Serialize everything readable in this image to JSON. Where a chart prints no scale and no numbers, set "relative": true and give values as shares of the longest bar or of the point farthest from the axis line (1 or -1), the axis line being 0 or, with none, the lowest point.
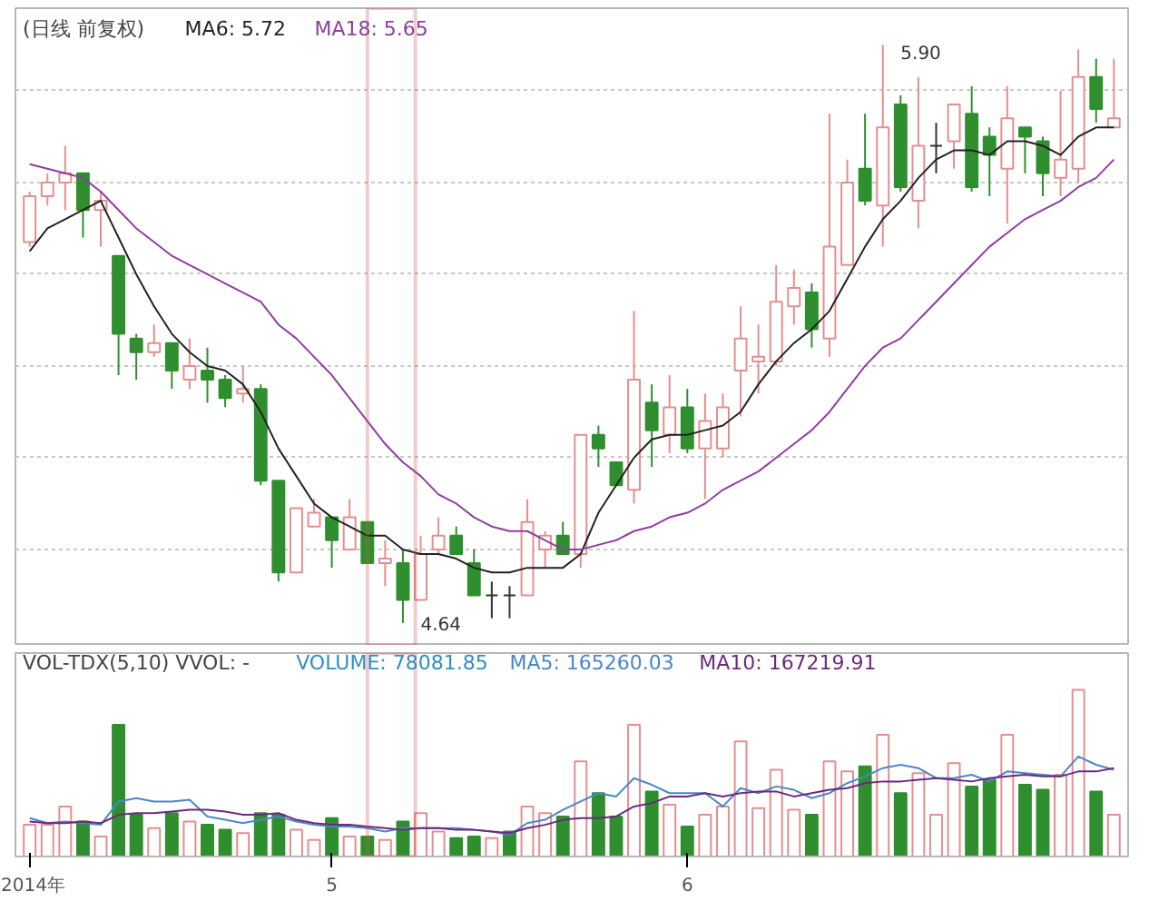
{
  "chart_data": [
    {
      "type": "candlestick",
      "title": "(日线 前复权)",
      "legend": "top left",
      "grid": "y",
      "tick_labels": false,
      "ylim": [
        4.59,
        5.98
      ],
      "yticks": [
        {
          "value": 4.8,
          "label": null
        },
        {
          "value": 5.0,
          "label": null
        },
        {
          "value": 5.2,
          "label": null
        },
        {
          "value": 5.4,
          "label": null
        },
        {
          "value": 5.6,
          "label": null
        },
        {
          "value": 5.8,
          "label": null
        }
      ],
      "categories": [
        null,
        null,
        null,
        null,
        null,
        null,
        null,
        null,
        null,
        null,
        null,
        null,
        null,
        null,
        null,
        null,
        null,
        null,
        null,
        null,
        null,
        null,
        null,
        null,
        null,
        null,
        null,
        null,
        null,
        null,
        null,
        null,
        null,
        null,
        null,
        null,
        null,
        null,
        null,
        null,
        null,
        null,
        null,
        null,
        null,
        null,
        null,
        null,
        null,
        null,
        null,
        null,
        null,
        null,
        null,
        null,
        null,
        null,
        null,
        null,
        null,
        null
      ],
      "ohlc": [
        [
          5.47,
          5.58,
          5.46,
          5.57
        ],
        [
          5.57,
          5.62,
          5.55,
          5.6
        ],
        [
          5.6,
          5.68,
          5.54,
          5.62
        ],
        [
          5.62,
          5.62,
          5.48,
          5.54
        ],
        [
          5.54,
          5.58,
          5.46,
          5.56
        ],
        [
          5.44,
          5.44,
          5.18,
          5.27
        ],
        [
          5.26,
          5.27,
          5.17,
          5.23
        ],
        [
          5.23,
          5.29,
          5.22,
          5.25
        ],
        [
          5.25,
          5.25,
          5.15,
          5.19
        ],
        [
          5.17,
          5.26,
          5.15,
          5.2
        ],
        [
          5.19,
          5.24,
          5.12,
          5.17
        ],
        [
          5.17,
          5.18,
          5.11,
          5.13
        ],
        [
          5.14,
          5.2,
          5.12,
          5.15
        ],
        [
          5.15,
          5.16,
          4.94,
          4.95
        ],
        [
          4.95,
          4.95,
          4.73,
          4.75
        ],
        [
          4.75,
          4.89,
          4.75,
          4.89
        ],
        [
          4.85,
          4.91,
          4.85,
          4.88
        ],
        [
          4.87,
          4.87,
          4.76,
          4.82
        ],
        [
          4.8,
          4.91,
          4.8,
          4.87
        ],
        [
          4.86,
          4.86,
          4.77,
          4.77
        ],
        [
          4.77,
          4.82,
          4.72,
          4.78
        ],
        [
          4.77,
          4.8,
          4.64,
          4.69
        ],
        [
          4.69,
          4.83,
          4.69,
          4.79
        ],
        [
          4.8,
          4.87,
          4.79,
          4.83
        ],
        [
          4.83,
          4.85,
          4.79,
          4.79
        ],
        [
          4.77,
          4.8,
          4.7,
          4.7
        ],
        [
          4.7,
          4.73,
          4.65,
          4.7
        ],
        [
          4.7,
          4.72,
          4.65,
          4.7
        ],
        [
          4.7,
          4.91,
          4.7,
          4.86
        ],
        [
          4.8,
          4.84,
          4.76,
          4.83
        ],
        [
          4.83,
          4.86,
          4.79,
          4.79
        ],
        [
          4.79,
          5.05,
          4.76,
          5.05
        ],
        [
          5.05,
          5.07,
          4.98,
          5.02
        ],
        [
          4.99,
          4.99,
          4.94,
          4.94
        ],
        [
          4.93,
          5.32,
          4.9,
          5.17
        ],
        [
          5.12,
          5.16,
          4.98,
          5.06
        ],
        [
          5.05,
          5.18,
          5.01,
          5.11
        ],
        [
          5.11,
          5.15,
          5.01,
          5.02
        ],
        [
          5.02,
          5.14,
          4.91,
          5.08
        ],
        [
          5.02,
          5.14,
          5.0,
          5.11
        ],
        [
          5.19,
          5.33,
          5.09,
          5.26
        ],
        [
          5.21,
          5.29,
          5.14,
          5.22
        ],
        [
          5.21,
          5.42,
          5.2,
          5.34
        ],
        [
          5.33,
          5.41,
          5.29,
          5.37
        ],
        [
          5.36,
          5.38,
          5.24,
          5.28
        ],
        [
          5.26,
          5.75,
          5.22,
          5.46
        ],
        [
          5.42,
          5.65,
          5.42,
          5.6
        ],
        [
          5.63,
          5.75,
          5.55,
          5.56
        ],
        [
          5.55,
          5.9,
          5.46,
          5.72
        ],
        [
          5.77,
          5.79,
          5.58,
          5.59
        ],
        [
          5.56,
          5.83,
          5.5,
          5.68
        ],
        [
          5.68,
          5.73,
          5.62,
          5.68
        ],
        [
          5.69,
          5.77,
          5.63,
          5.77
        ],
        [
          5.75,
          5.81,
          5.58,
          5.59
        ],
        [
          5.7,
          5.72,
          5.57,
          5.66
        ],
        [
          5.63,
          5.81,
          5.51,
          5.74
        ],
        [
          5.72,
          5.72,
          5.62,
          5.7
        ],
        [
          5.69,
          5.7,
          5.57,
          5.62
        ],
        [
          5.61,
          5.8,
          5.57,
          5.65
        ],
        [
          5.63,
          5.89,
          5.6,
          5.83
        ],
        [
          5.83,
          5.87,
          5.73,
          5.76
        ],
        [
          5.72,
          5.87,
          5.72,
          5.74
        ]
      ],
      "colors": [
        "#e58e8e",
        "#e58e8e",
        "#e58e8e",
        "#2f8f2f",
        "#e58e8e",
        "#2f8f2f",
        "#2f8f2f",
        "#e58e8e",
        "#2f8f2f",
        "#e58e8e",
        "#2f8f2f",
        "#2f8f2f",
        "#e58e8e",
        "#2f8f2f",
        "#2f8f2f",
        "#e58e8e",
        "#e58e8e",
        "#2f8f2f",
        "#e58e8e",
        "#2f8f2f",
        "#e58e8e",
        "#2f8f2f",
        "#e58e8e",
        "#e58e8e",
        "#2f8f2f",
        "#2f8f2f",
        "#333333",
        "#333333",
        "#e58e8e",
        "#e58e8e",
        "#2f8f2f",
        "#e58e8e",
        "#2f8f2f",
        "#2f8f2f",
        "#e58e8e",
        "#2f8f2f",
        "#e58e8e",
        "#2f8f2f",
        "#e58e8e",
        "#e58e8e",
        "#e58e8e",
        "#e58e8e",
        "#e58e8e",
        "#e58e8e",
        "#2f8f2f",
        "#e58e8e",
        "#e58e8e",
        "#2f8f2f",
        "#e58e8e",
        "#2f8f2f",
        "#e58e8e",
        "#333333",
        "#e58e8e",
        "#2f8f2f",
        "#2f8f2f",
        "#e58e8e",
        "#2f8f2f",
        "#2f8f2f",
        "#e58e8e",
        "#e58e8e",
        "#2f8f2f",
        "#e58e8e"
      ],
      "series": [
        {
          "name": "MA6: 5.72",
          "type": "line",
          "color": "#222222",
          "values": [
            5.45,
            5.5,
            5.52,
            5.54,
            5.56,
            5.48,
            5.4,
            5.33,
            5.27,
            5.23,
            5.2,
            5.19,
            5.16,
            5.1,
            5.02,
            4.96,
            4.9,
            4.87,
            4.85,
            4.83,
            4.83,
            4.8,
            4.79,
            4.79,
            4.78,
            4.76,
            4.75,
            4.75,
            4.76,
            4.76,
            4.76,
            4.79,
            4.88,
            4.94,
            5.0,
            5.04,
            5.05,
            5.05,
            5.06,
            5.07,
            5.1,
            5.16,
            5.21,
            5.25,
            5.28,
            5.32,
            5.39,
            5.46,
            5.52,
            5.56,
            5.61,
            5.65,
            5.67,
            5.67,
            5.66,
            5.69,
            5.69,
            5.68,
            5.66,
            5.7,
            5.72,
            5.72
          ]
        },
        {
          "name": "MA18: 5.65",
          "type": "line",
          "color": "#8e3f9e",
          "values": [
            5.64,
            5.63,
            5.62,
            5.61,
            5.58,
            5.54,
            5.5,
            5.47,
            5.44,
            5.42,
            5.4,
            5.38,
            5.36,
            5.34,
            5.29,
            5.26,
            5.22,
            5.18,
            5.13,
            5.08,
            5.03,
            4.99,
            4.96,
            4.92,
            4.9,
            4.87,
            4.85,
            4.84,
            4.84,
            4.82,
            4.8,
            4.8,
            4.81,
            4.82,
            4.84,
            4.85,
            4.87,
            4.88,
            4.9,
            4.93,
            4.95,
            4.97,
            5.0,
            5.03,
            5.06,
            5.1,
            5.15,
            5.2,
            5.24,
            5.26,
            5.3,
            5.34,
            5.38,
            5.42,
            5.46,
            5.49,
            5.52,
            5.54,
            5.56,
            5.59,
            5.61,
            5.65
          ]
        }
      ],
      "annotations": [
        "5.90",
        "4.64"
      ]
    },
    {
      "type": "bar",
      "title": "VOL-TDX(5,10) VVOL: -",
      "relative": true,
      "legend": "top",
      "tick_labels": "x",
      "categories": [
        "2014年",
        null,
        null,
        null,
        null,
        null,
        null,
        null,
        null,
        null,
        null,
        null,
        null,
        null,
        null,
        null,
        null,
        "5",
        null,
        null,
        null,
        null,
        null,
        null,
        null,
        null,
        null,
        null,
        null,
        null,
        null,
        null,
        null,
        null,
        null,
        null,
        null,
        "6",
        null,
        null,
        null,
        null,
        null,
        null,
        null,
        null,
        null,
        null,
        null,
        null,
        null,
        null,
        null,
        null,
        null,
        null,
        null,
        null,
        null,
        null,
        null,
        null
      ],
      "values": [
        0.19,
        0.19,
        0.3,
        0.21,
        0.12,
        0.79,
        0.25,
        0.17,
        0.26,
        0.21,
        0.19,
        0.16,
        0.14,
        0.26,
        0.25,
        0.16,
        0.1,
        0.23,
        0.12,
        0.12,
        0.1,
        0.21,
        0.26,
        0.15,
        0.11,
        0.12,
        0.11,
        0.15,
        0.3,
        0.26,
        0.24,
        0.57,
        0.38,
        0.24,
        0.79,
        0.39,
        0.31,
        0.18,
        0.25,
        0.3,
        0.69,
        0.29,
        0.52,
        0.28,
        0.25,
        0.57,
        0.51,
        0.54,
        0.73,
        0.38,
        0.5,
        0.25,
        0.56,
        0.42,
        0.46,
        0.73,
        0.43,
        0.4,
        0.49,
        1,
        0.39,
        0.25
      ],
      "colors": [
        "#e58e8e",
        "#e58e8e",
        "#e58e8e",
        "#2f8f2f",
        "#e58e8e",
        "#2f8f2f",
        "#2f8f2f",
        "#e58e8e",
        "#2f8f2f",
        "#e58e8e",
        "#2f8f2f",
        "#2f8f2f",
        "#e58e8e",
        "#2f8f2f",
        "#2f8f2f",
        "#e58e8e",
        "#e58e8e",
        "#2f8f2f",
        "#e58e8e",
        "#2f8f2f",
        "#e58e8e",
        "#2f8f2f",
        "#e58e8e",
        "#e58e8e",
        "#2f8f2f",
        "#2f8f2f",
        "#e58e8e",
        "#2f8f2f",
        "#e58e8e",
        "#e58e8e",
        "#2f8f2f",
        "#e58e8e",
        "#2f8f2f",
        "#2f8f2f",
        "#e58e8e",
        "#2f8f2f",
        "#e58e8e",
        "#2f8f2f",
        "#e58e8e",
        "#e58e8e",
        "#e58e8e",
        "#e58e8e",
        "#e58e8e",
        "#e58e8e",
        "#2f8f2f",
        "#e58e8e",
        "#e58e8e",
        "#2f8f2f",
        "#e58e8e",
        "#2f8f2f",
        "#e58e8e",
        "#e58e8e",
        "#e58e8e",
        "#2f8f2f",
        "#2f8f2f",
        "#e58e8e",
        "#2f8f2f",
        "#2f8f2f",
        "#e58e8e",
        "#e58e8e",
        "#2f8f2f",
        "#e58e8e"
      ],
      "series": [
        {
          "name": "MA5: 165260.03",
          "type": "line",
          "color": "#4b87c8",
          "values": [
            0.23,
            0.2,
            0.21,
            0.2,
            0.19,
            0.33,
            0.35,
            0.33,
            0.33,
            0.34,
            0.24,
            0.22,
            0.2,
            0.22,
            0.24,
            0.21,
            0.19,
            0.18,
            0.18,
            0.17,
            0.15,
            0.17,
            0.17,
            0.17,
            0.17,
            0.16,
            0.15,
            0.13,
            0.2,
            0.22,
            0.28,
            0.33,
            0.38,
            0.36,
            0.47,
            0.43,
            0.38,
            0.38,
            0.38,
            0.3,
            0.41,
            0.38,
            0.42,
            0.4,
            0.35,
            0.38,
            0.44,
            0.48,
            0.53,
            0.55,
            0.53,
            0.47,
            0.47,
            0.49,
            0.45,
            0.51,
            0.5,
            0.49,
            0.48,
            0.6,
            0.55,
            0.52
          ]
        },
        {
          "name": "MA10: 167219.91",
          "type": "line",
          "color": "#6b2a7b",
          "values": [
            0.21,
            0.2,
            0.2,
            0.21,
            0.2,
            0.25,
            0.26,
            0.26,
            0.27,
            0.28,
            0.28,
            0.27,
            0.25,
            0.25,
            0.26,
            0.22,
            0.2,
            0.19,
            0.19,
            0.18,
            0.17,
            0.16,
            0.17,
            0.17,
            0.16,
            0.16,
            0.15,
            0.14,
            0.17,
            0.19,
            0.22,
            0.23,
            0.23,
            0.24,
            0.3,
            0.32,
            0.36,
            0.36,
            0.38,
            0.36,
            0.38,
            0.39,
            0.39,
            0.36,
            0.38,
            0.4,
            0.41,
            0.44,
            0.45,
            0.45,
            0.46,
            0.47,
            0.46,
            0.45,
            0.47,
            0.48,
            0.49,
            0.48,
            0.48,
            0.51,
            0.51,
            0.53
          ]
        }
      ],
      "annotations": [
        "VOLUME: 78081.85"
      ]
    }
  ]
}
